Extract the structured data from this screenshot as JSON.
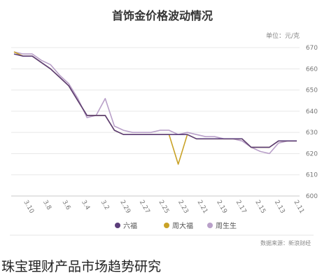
{
  "chart_data": {
    "type": "line",
    "title": "首饰金价格波动情况",
    "unit_label": "单位：元/克",
    "source": "数据来源：新浪财经",
    "y_ticks": [
      670,
      660,
      650,
      640,
      630,
      620,
      610,
      600
    ],
    "ylim": [
      600,
      672
    ],
    "x_tick_labels": [
      "3.10",
      "3.8",
      "3.6",
      "3.4",
      "3.2",
      "2.29",
      "2.27",
      "2.25",
      "2.23",
      "2.21",
      "2.19",
      "2.17",
      "2.15",
      "2.13",
      "2.11"
    ],
    "x_order": "descending-dates-left-to-right",
    "grid": true,
    "legend_position": "bottom-center",
    "series": [
      {
        "name": "周生生",
        "color": "#b9a0c9",
        "values": [
          668,
          667,
          667,
          664,
          662,
          657,
          653,
          646,
          637,
          638,
          646,
          633,
          631,
          630,
          630,
          630,
          631,
          631,
          629,
          630,
          629,
          628,
          628,
          627,
          627,
          626,
          623,
          621,
          620,
          625,
          626,
          626
        ]
      },
      {
        "name": "周大福",
        "color": "#c9a227",
        "values": [
          668,
          666,
          666,
          663,
          660,
          656,
          652,
          645,
          638,
          638,
          638,
          631,
          629,
          629,
          629,
          629,
          629,
          629,
          615,
          629,
          627,
          627,
          627,
          627,
          627,
          627,
          623,
          623,
          623,
          626,
          626,
          626
        ]
      },
      {
        "name": "六福",
        "color": "#5b3d7a",
        "values": [
          667,
          666,
          666,
          663,
          660,
          656,
          652,
          645,
          638,
          638,
          638,
          631,
          629,
          629,
          629,
          629,
          629,
          629,
          629,
          629,
          627,
          627,
          627,
          627,
          627,
          627,
          623,
          623,
          623,
          626,
          626,
          626
        ]
      }
    ]
  },
  "caption": "珠宝理财产品市场趋势研究"
}
